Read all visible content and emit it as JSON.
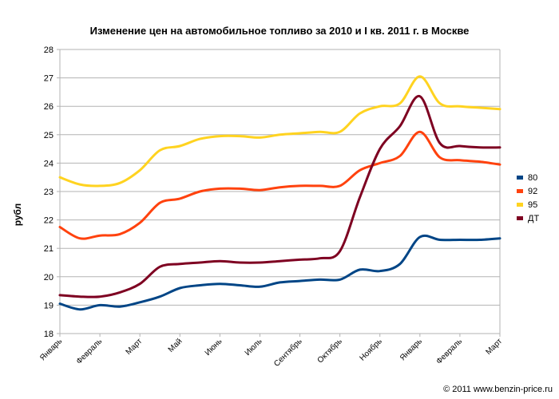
{
  "chart_data": {
    "type": "line",
    "title": "Изменение цен на автомобильное топливо за 2010 и I кв. 2011 г. в Москве",
    "xlabel": "",
    "ylabel": "рубл",
    "ylim": [
      18,
      28
    ],
    "ytick_step": 1,
    "grid": true,
    "legend_position": "right",
    "categories": [
      "Январь",
      "Февраль",
      "Март",
      "Май",
      "Июнь",
      "Июль",
      "Сентябрь",
      "Октябрь",
      "Ноябрь",
      "Январь",
      "Февраль",
      "Март"
    ],
    "x": [
      0,
      0.5,
      1,
      1.5,
      2,
      2.5,
      3,
      3.5,
      4,
      4.5,
      5,
      5.5,
      6,
      6.5,
      7,
      7.5,
      8,
      8.5,
      9,
      9.5,
      10,
      10.5,
      11
    ],
    "series": [
      {
        "name": "80",
        "color": "#004586",
        "values": [
          19.05,
          18.85,
          19.0,
          18.95,
          19.1,
          19.3,
          19.6,
          19.7,
          19.75,
          19.7,
          19.65,
          19.8,
          19.85,
          19.9,
          19.9,
          20.25,
          20.2,
          20.45,
          21.4,
          21.3,
          21.3,
          21.3,
          21.35
        ]
      },
      {
        "name": "92",
        "color": "#ff420e",
        "values": [
          21.75,
          21.35,
          21.45,
          21.5,
          21.9,
          22.6,
          22.75,
          23.0,
          23.1,
          23.1,
          23.05,
          23.15,
          23.2,
          23.2,
          23.2,
          23.75,
          24.0,
          24.25,
          25.1,
          24.2,
          24.1,
          24.05,
          23.95
        ]
      },
      {
        "name": "95",
        "color": "#ffd320",
        "values": [
          23.5,
          23.25,
          23.2,
          23.3,
          23.75,
          24.45,
          24.6,
          24.85,
          24.95,
          24.95,
          24.9,
          25.0,
          25.05,
          25.1,
          25.1,
          25.75,
          26.0,
          26.1,
          27.05,
          26.1,
          26.0,
          25.95,
          25.9
        ]
      },
      {
        "name": "ДТ",
        "color": "#7e0021",
        "values": [
          19.35,
          19.3,
          19.3,
          19.45,
          19.75,
          20.35,
          20.45,
          20.5,
          20.55,
          20.5,
          20.5,
          20.55,
          20.6,
          20.65,
          20.9,
          22.8,
          24.5,
          25.3,
          26.35,
          24.7,
          24.6,
          24.55,
          24.55
        ]
      }
    ]
  },
  "copyright": "© 2011 www.benzin-price.ru"
}
